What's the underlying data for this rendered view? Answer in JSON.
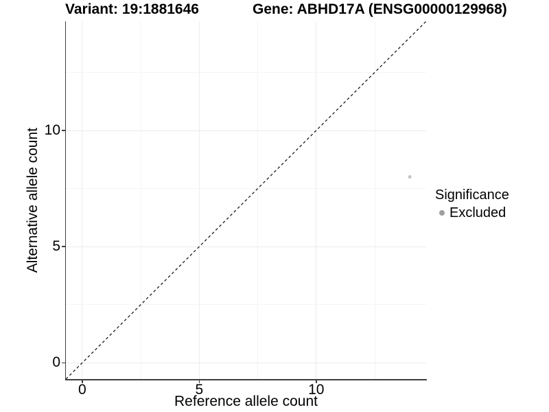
{
  "figure": {
    "title_left": "Variant: 19:1881646",
    "title_right": "Gene: ABHD17A (ENSG00000129968)"
  },
  "chart_data": {
    "type": "scatter",
    "title": "Variant: 19:1881646 — Gene: ABHD17A (ENSG00000129968)",
    "xlabel": "Reference allele count",
    "ylabel": "Alternative allele count",
    "xlim": [
      -0.7,
      14.7
    ],
    "ylim": [
      -0.7,
      14.7
    ],
    "x_major_ticks": [
      0,
      5,
      10
    ],
    "y_major_ticks": [
      0,
      5,
      10
    ],
    "x_minor_ticks": [
      2.5,
      7.5,
      12.5
    ],
    "y_minor_ticks": [
      2.5,
      7.5,
      12.5
    ],
    "grid": true,
    "points": [
      {
        "x": 14,
        "y": 8,
        "group": "Excluded"
      }
    ],
    "reference_line": {
      "kind": "identity",
      "slope": 1,
      "intercept": 0,
      "style": "dashed"
    },
    "legend": {
      "title": "Significance",
      "position": "right",
      "entries": [
        {
          "label": "Excluded",
          "color": "#9e9e9e"
        }
      ]
    },
    "colors": {
      "point": "#c5c5c5",
      "reference_line": "#1a1a1a",
      "grid_major": "#ececec",
      "grid_minor": "#f4f4f4",
      "axis_line": "#3d3d3d"
    }
  }
}
